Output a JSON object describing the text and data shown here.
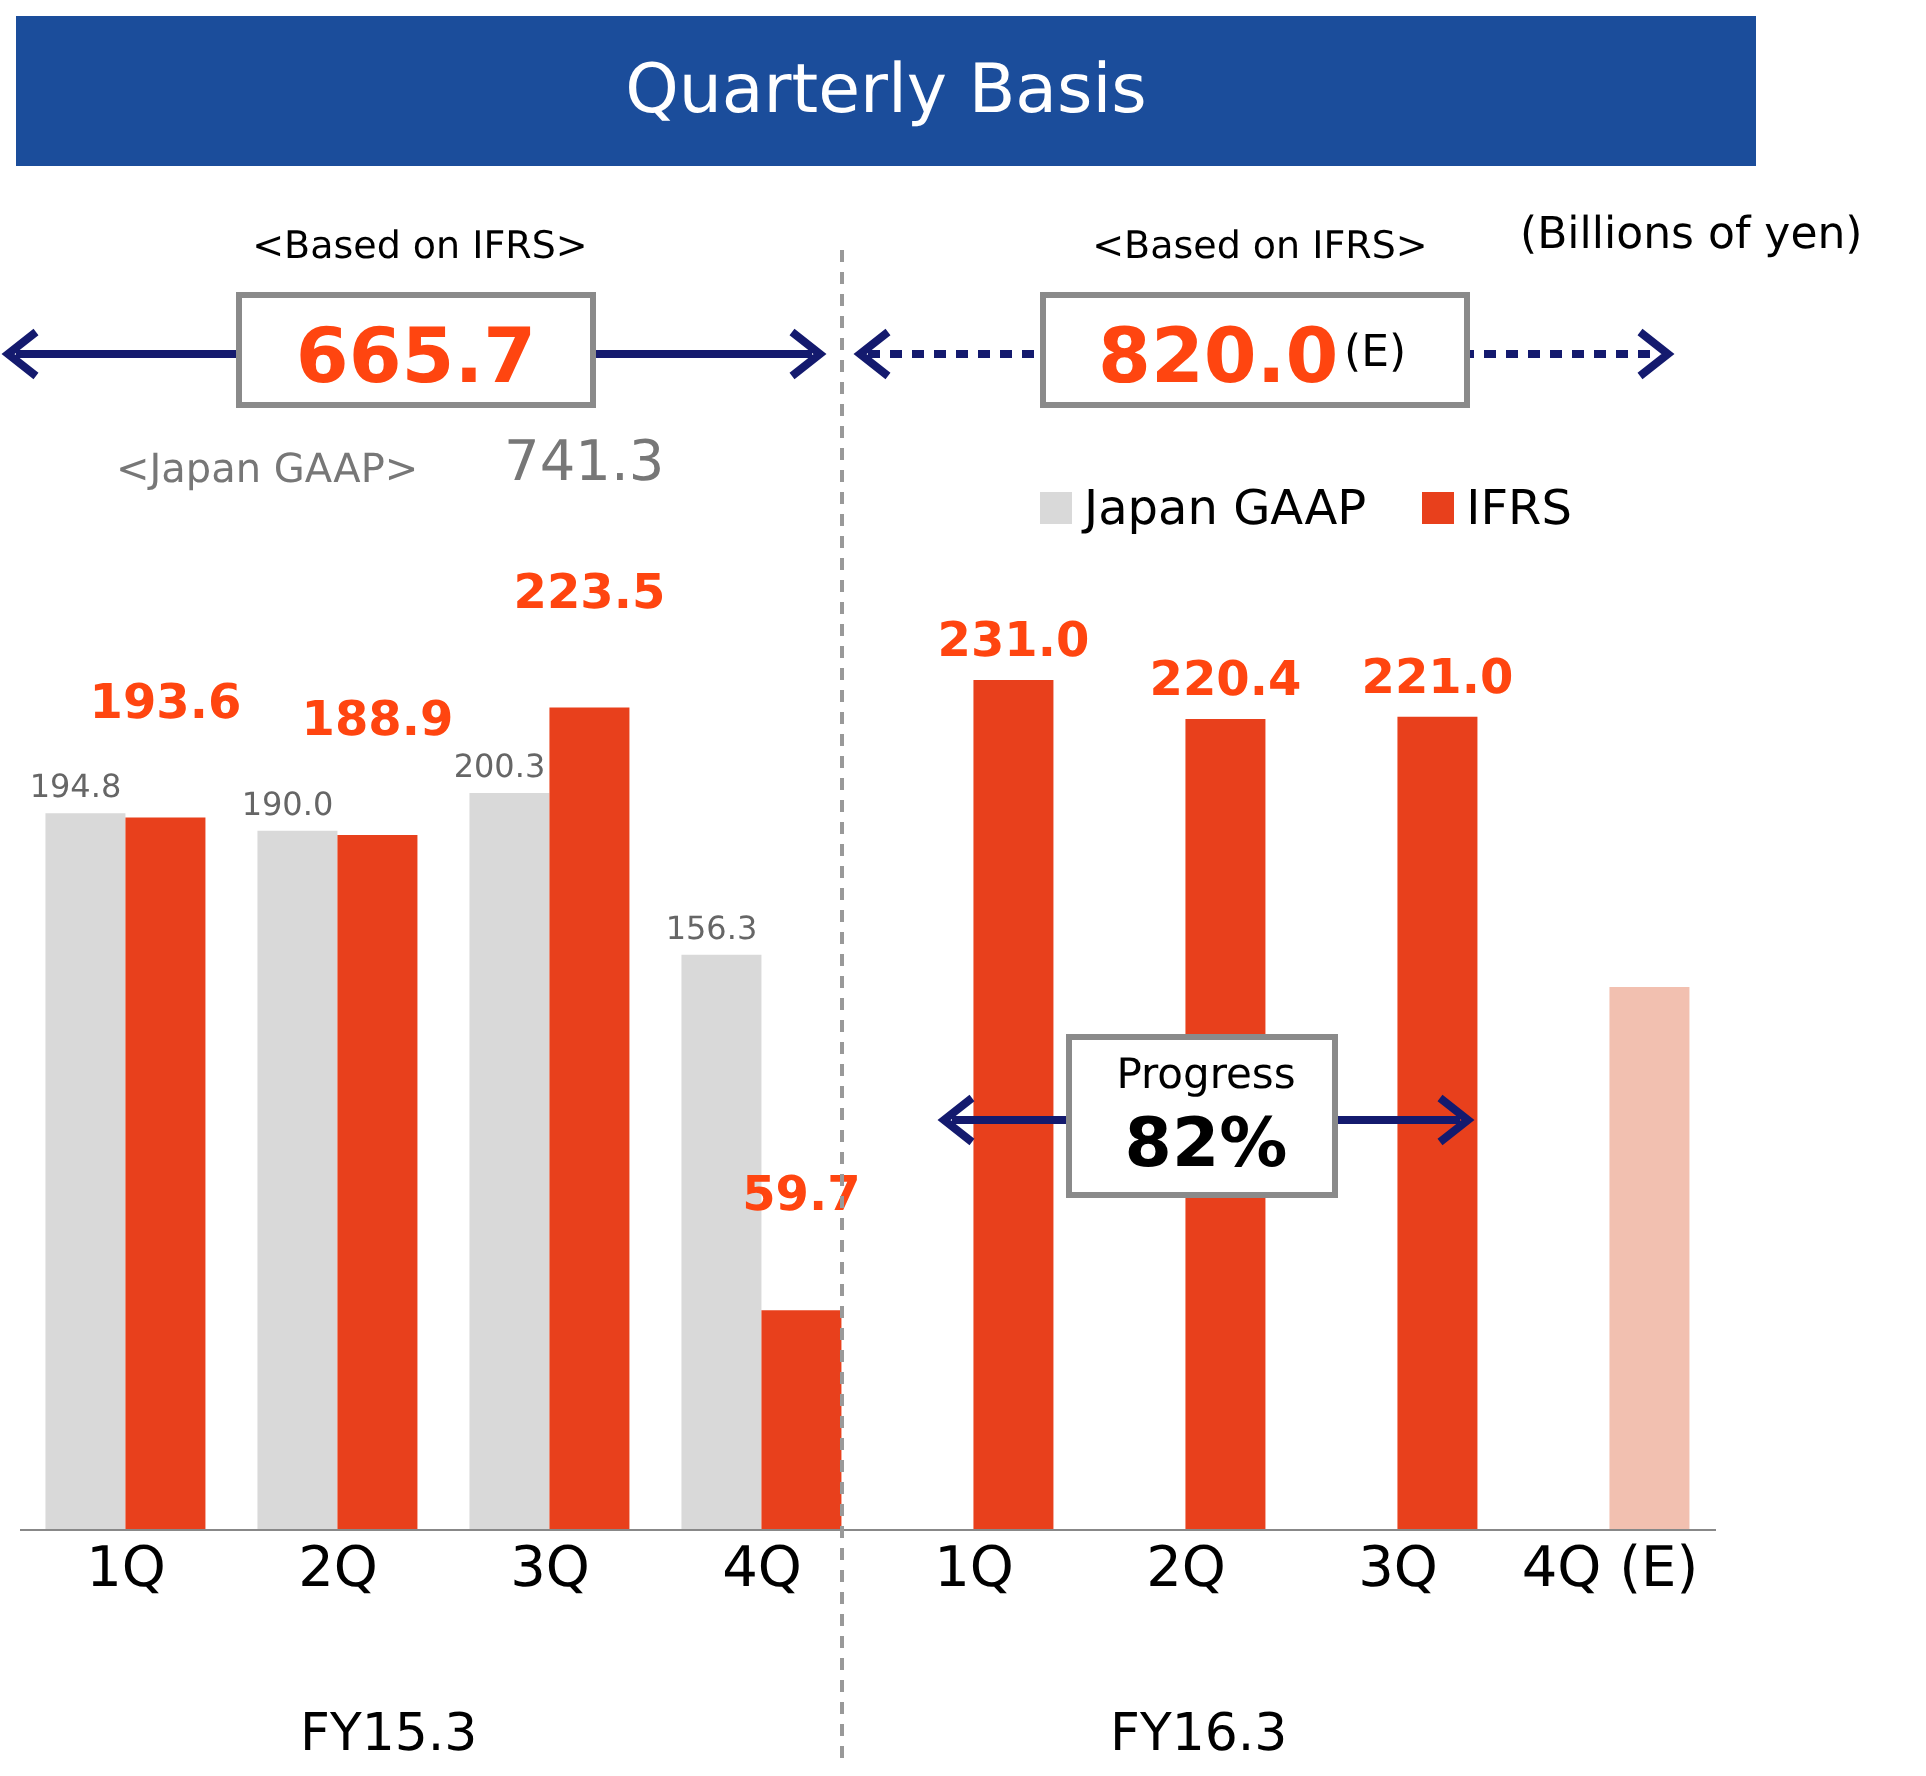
{
  "chart_data": {
    "type": "bar",
    "title": "Quarterly Basis",
    "categories": [
      "1Q",
      "2Q",
      "3Q",
      "4Q",
      "1Q",
      "2Q",
      "3Q",
      "4Q (E)"
    ],
    "series": [
      {
        "name": "Japan GAAP",
        "color": "#d9d9d9",
        "values": [
          194.8,
          190.0,
          200.3,
          156.3,
          null,
          null,
          null,
          null
        ],
        "value_labels": [
          "194.8",
          "190.0",
          "200.3",
          "156.3",
          null,
          null,
          null,
          null
        ]
      },
      {
        "name": "IFRS",
        "color": "#e8401c",
        "colors": [
          "#e8401c",
          "#e8401c",
          "#e8401c",
          "#e8401c",
          "#e8401c",
          "#e8401c",
          "#e8401c",
          "#f2c0b0"
        ],
        "values": [
          193.6,
          188.9,
          223.5,
          59.7,
          231.0,
          220.4,
          221.0,
          147.6
        ],
        "value_labels": [
          "193.6",
          "188.9",
          "223.5",
          "59.7",
          "231.0",
          "220.4",
          "221.0",
          null
        ]
      }
    ],
    "legend": "top right",
    "annotations": [
      "<Based on IFRS>",
      "665.7",
      "<Japan GAAP>",
      "741.3",
      "<Based on IFRS>",
      "820.0",
      "(E)",
      "(Billions of yen)",
      "Progress",
      "82%",
      "FY15.3",
      "FY16.3"
    ]
  }
}
